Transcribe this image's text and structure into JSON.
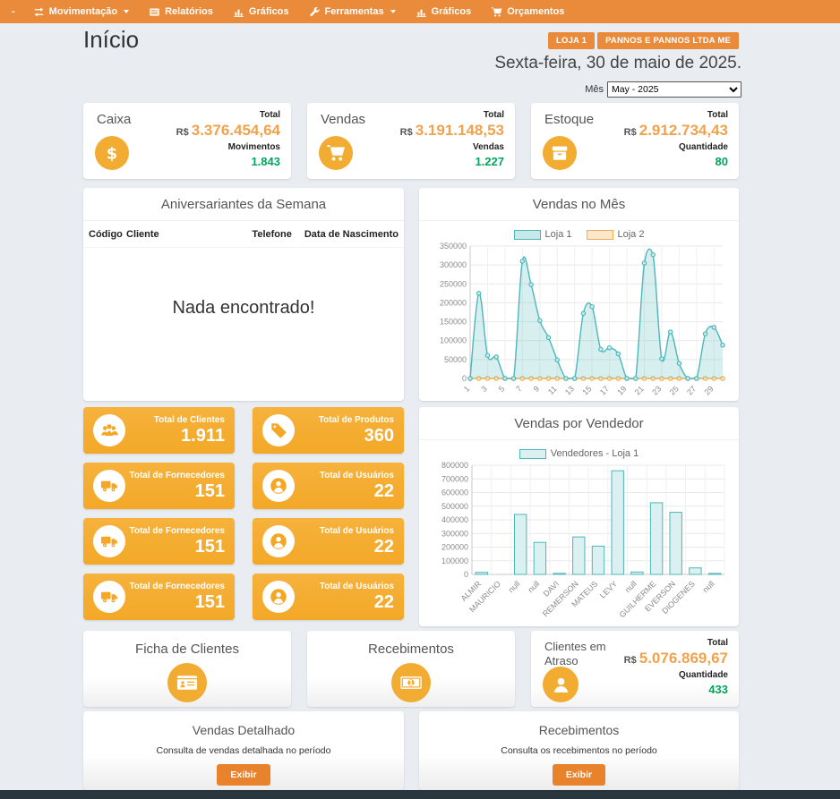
{
  "nav": {
    "dash": "-",
    "items": [
      {
        "label": "Movimentação",
        "icon": "exchange-icon",
        "caret": true
      },
      {
        "label": "Relatórios",
        "icon": "report-icon",
        "caret": false
      },
      {
        "label": "Gráficos",
        "icon": "bar-chart-icon",
        "caret": false
      },
      {
        "label": "Ferramentas",
        "icon": "wrench-icon",
        "caret": true
      },
      {
        "label": "Gráficos",
        "icon": "bar-chart-icon",
        "caret": false
      },
      {
        "label": "Orçamentos",
        "icon": "cart-icon",
        "caret": false
      }
    ]
  },
  "header": {
    "page_title": "Início",
    "store_badge": "LOJA 1",
    "company_badge": "PANNOS E PANNOS LTDA ME",
    "date_text": "Sexta-feira, 30 de maio de 2025.",
    "month_label": "Mês",
    "month_value": "May - 2025"
  },
  "summary_cards": [
    {
      "title": "Caixa",
      "icon": "dollar-icon",
      "total_label": "Total",
      "currency": "R$",
      "amount": "3.376.454,64",
      "count_label": "Movimentos",
      "count_value": "1.843"
    },
    {
      "title": "Vendas",
      "icon": "cart-icon",
      "total_label": "Total",
      "currency": "R$",
      "amount": "3.191.148,53",
      "count_label": "Vendas",
      "count_value": "1.227"
    },
    {
      "title": "Estoque",
      "icon": "box-icon",
      "total_label": "Total",
      "currency": "R$",
      "amount": "2.912.734,43",
      "count_label": "Quantidade",
      "count_value": "80"
    }
  ],
  "birthdays": {
    "title": "Aniversariantes da Semana",
    "columns": [
      "Código",
      "Cliente",
      "Telefone",
      "Data de Nascimento"
    ],
    "empty_message": "Nada encontrado!"
  },
  "stat_cards": [
    {
      "label": "Total de Clientes",
      "value": "1.911",
      "icon": "users-icon"
    },
    {
      "label": "Total de Produtos",
      "value": "360",
      "icon": "tag-icon"
    },
    {
      "label": "Total de Fornecedores",
      "value": "151",
      "icon": "truck-icon"
    },
    {
      "label": "Total de Usuários",
      "value": "22",
      "icon": "user-circle-icon"
    },
    {
      "label": "Total de Fornecedores",
      "value": "151",
      "icon": "truck-icon"
    },
    {
      "label": "Total de Usuários",
      "value": "22",
      "icon": "user-circle-icon"
    },
    {
      "label": "Total de Fornecedores",
      "value": "151",
      "icon": "truck-icon"
    },
    {
      "label": "Total de Usuários",
      "value": "22",
      "icon": "user-circle-icon"
    }
  ],
  "info_cards": [
    {
      "title": "Ficha de Clientes",
      "icon": "id-card-icon"
    },
    {
      "title": "Recebimentos",
      "icon": "money-bill-icon"
    }
  ],
  "overdue_card": {
    "title": "Clientes em Atraso",
    "icon": "person-icon",
    "total_label": "Total",
    "currency": "R$",
    "amount": "5.076.869,67",
    "count_label": "Quantidade",
    "count_value": "433"
  },
  "action_cards": [
    {
      "title": "Vendas Detalhado",
      "description": "Consulta de vendas detalhada no período",
      "button": "Exibir"
    },
    {
      "title": "Recebimentos",
      "description": "Consulta os recebimentos no período",
      "button": "Exibir"
    }
  ],
  "colors": {
    "navbar_orange": "#e98b3b",
    "icon_orange": "#f2ac32",
    "stat_card_orange": "#f5ae34",
    "value_orange": "#f0a24c",
    "positive_green": "#00a65a",
    "chart_teal": "#4db6ba",
    "chart_orange": "#f0ad4e",
    "button_orange": "#e8832c",
    "footer_dark": "#2a363d"
  },
  "chart_data": [
    {
      "type": "area",
      "title": "Vendas no Mês",
      "x": [
        1,
        2,
        3,
        4,
        5,
        6,
        7,
        8,
        9,
        10,
        11,
        12,
        13,
        14,
        15,
        16,
        17,
        18,
        19,
        20,
        21,
        22,
        23,
        24,
        25,
        26,
        27,
        28,
        29,
        30
      ],
      "ylim": [
        0,
        350000
      ],
      "ytick_step": 50000,
      "grid": true,
      "legend_position": "top",
      "series": [
        {
          "name": "Loja 1",
          "color": "#4db6ba",
          "fill": "#c7e9e8",
          "values": [
            0,
            225000,
            61000,
            57000,
            0,
            0,
            310000,
            248000,
            153000,
            108000,
            49000,
            0,
            0,
            172000,
            190000,
            77000,
            81000,
            65000,
            0,
            0,
            305000,
            327000,
            52000,
            123000,
            40000,
            0,
            0,
            118000,
            135000,
            88000
          ]
        },
        {
          "name": "Loja 2",
          "color": "#f0ad4e",
          "fill": "#fbe8cc",
          "values": [
            0,
            0,
            0,
            0,
            0,
            0,
            0,
            0,
            0,
            0,
            0,
            0,
            0,
            0,
            0,
            0,
            0,
            0,
            0,
            0,
            0,
            0,
            0,
            0,
            0,
            0,
            0,
            0,
            0,
            0
          ]
        }
      ]
    },
    {
      "type": "bar",
      "title": "Vendas por Vendedor",
      "categories": [
        "ALMIR",
        "MAURICIO",
        "null",
        "null",
        "DAVI",
        "REMERSON",
        "MATEUS",
        "LEVY",
        "null",
        "GUILHERME",
        "EVERSON",
        "DIOGENES",
        "null"
      ],
      "ylim": [
        0,
        800000
      ],
      "ytick_step": 100000,
      "grid": true,
      "legend_position": "top",
      "series": [
        {
          "name": "Vendedores - Loja 1",
          "color": "#4db6ba",
          "fill": "#dbf0f0",
          "values": [
            15000,
            0,
            440000,
            235000,
            5000,
            275000,
            207000,
            760000,
            18000,
            525000,
            455000,
            48000,
            2000
          ]
        }
      ]
    }
  ]
}
